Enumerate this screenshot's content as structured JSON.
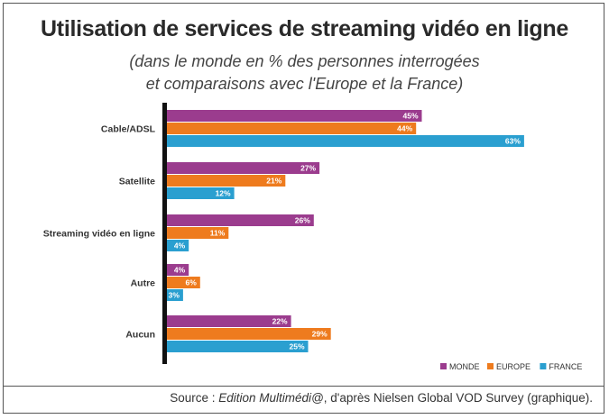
{
  "chart_data": {
    "type": "bar",
    "orientation": "horizontal",
    "title": "Utilisation de services de streaming vidéo en ligne",
    "subtitle_line1": "(dans le monde en % des personnes interrogées",
    "subtitle_line2": "et comparaisons avec l'Europe et la France)",
    "categories": [
      "Cable/ADSL",
      "Satellite",
      "Streaming vidéo en ligne",
      "Autre",
      "Aucun"
    ],
    "series": [
      {
        "name": "MONDE",
        "color": "#9b3c8e",
        "values": [
          45,
          27,
          26,
          4,
          22
        ]
      },
      {
        "name": "EUROPE",
        "color": "#ee7b1e",
        "values": [
          44,
          21,
          11,
          6,
          29
        ]
      },
      {
        "name": "FRANCE",
        "color": "#2a9fd0",
        "values": [
          63,
          12,
          4,
          3,
          25
        ]
      }
    ],
    "value_suffix": "%",
    "xlim": [
      0,
      70
    ],
    "grid": false,
    "legend_position": "bottom-right"
  },
  "source": {
    "prefix": "Source : ",
    "publication": "Edition Multimédi@",
    "suffix": ", d'après Nielsen Global VOD Survey (graphique)."
  }
}
